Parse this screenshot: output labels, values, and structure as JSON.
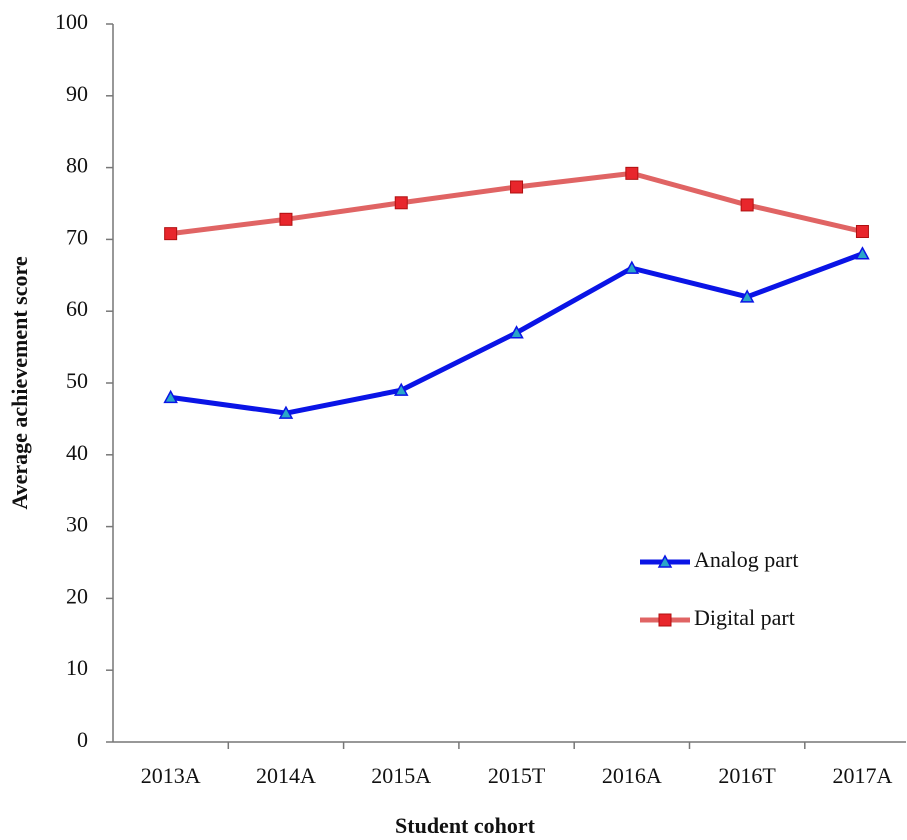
{
  "chart_data": {
    "type": "line",
    "x_label": "Student cohort",
    "y_label": "Average achievement score",
    "categories": [
      "2013A",
      "2014A",
      "2015A",
      "2015T",
      "2016A",
      "2016T",
      "2017A"
    ],
    "series": [
      {
        "name": "Analog part",
        "color": "#0a14e6",
        "marker": "triangle",
        "marker_color": "#2aa6c8",
        "values": [
          48,
          45.8,
          49,
          57,
          66,
          62,
          68
        ]
      },
      {
        "name": "Digital part",
        "color": "#e06464",
        "marker": "square",
        "marker_color": "#e8262c",
        "values": [
          70.8,
          72.8,
          75.1,
          77.3,
          79.2,
          74.8,
          71.1
        ]
      }
    ],
    "ylim": [
      0,
      100
    ],
    "yticks": [
      0,
      10,
      20,
      30,
      40,
      50,
      60,
      70,
      80,
      90,
      100
    ],
    "grid": false,
    "legend": "center right"
  }
}
